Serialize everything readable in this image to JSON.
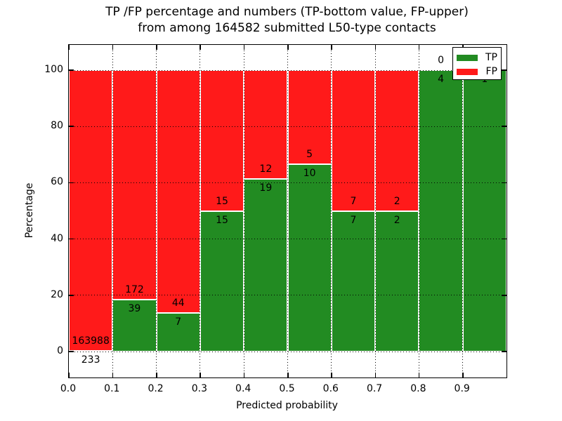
{
  "figure": {
    "background": "#ffffff",
    "title_line1": "TP /FP percentage and numbers (TP-bottom value, FP-upper)",
    "title_line2": "from among 164582 submitted L50-type contacts"
  },
  "chart_data": {
    "type": "bar",
    "subtype": "stacked-percentage-histogram",
    "title": "TP /FP percentage and numbers (TP-bottom value, FP-upper)\nfrom among 164582 submitted L50-type contacts",
    "xlabel": "Predicted probability",
    "ylabel": "Percentage",
    "total_submitted": 164582,
    "bin_width": 0.1,
    "bin_starts": [
      0.0,
      0.1,
      0.2,
      0.3,
      0.4,
      0.5,
      0.6,
      0.7,
      0.8,
      0.9
    ],
    "series": [
      {
        "name": "TP",
        "color": "#228b22",
        "values": [
          233,
          39,
          7,
          15,
          19,
          10,
          7,
          2,
          4,
          1
        ]
      },
      {
        "name": "FP",
        "color": "#ff1a1a",
        "values": [
          163988,
          172,
          44,
          15,
          12,
          5,
          7,
          2,
          0,
          0
        ]
      }
    ],
    "tp_percentages": [
      0.14,
      18.48,
      13.73,
      50.0,
      61.29,
      66.67,
      50.0,
      50.0,
      100.0,
      100.0
    ],
    "x_tick_labels": [
      "0.0",
      "0.1",
      "0.2",
      "0.3",
      "0.4",
      "0.5",
      "0.6",
      "0.7",
      "0.8",
      "0.9"
    ],
    "y_tick_values": [
      0,
      20,
      40,
      60,
      80,
      100
    ],
    "y_tick_labels": [
      "0",
      "20",
      "40",
      "60",
      "80",
      "100"
    ],
    "xlim": [
      0.0,
      1.0
    ],
    "ylim": [
      -9.5,
      109.0
    ],
    "grid": "dotted-black",
    "bar_edge_color": "#ffffff",
    "legend": {
      "position": "upper right",
      "items": [
        {
          "label": "TP",
          "color": "#228b22"
        },
        {
          "label": "FP",
          "color": "#ff1a1a"
        }
      ]
    }
  }
}
